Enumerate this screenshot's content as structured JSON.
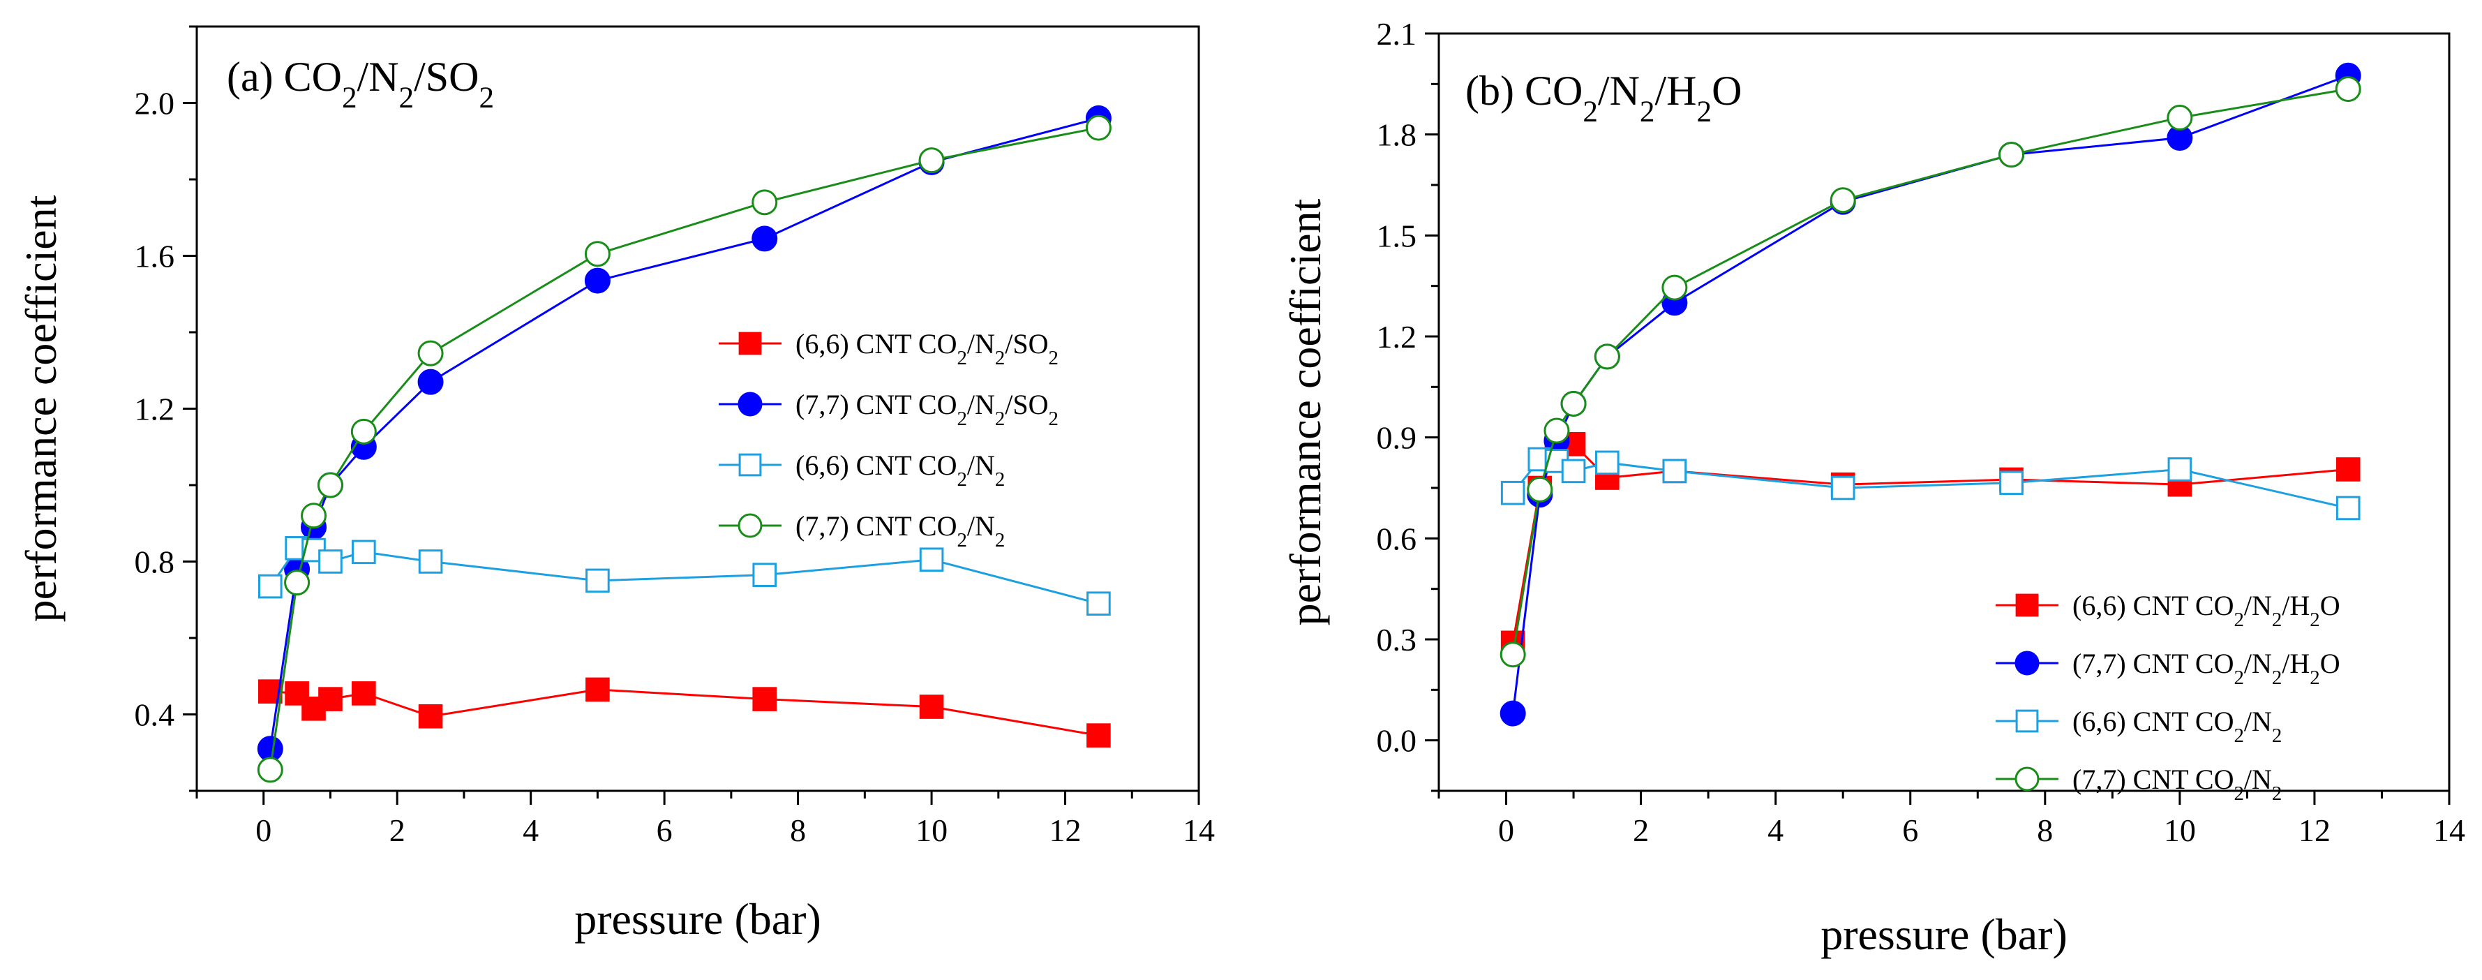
{
  "chart_data": [
    {
      "type": "line",
      "panel_title": {
        "prefix": "(a) CO",
        "s1": "2",
        "m1": "/N",
        "s2": "2",
        "m2": "/SO",
        "s3": "2"
      },
      "xlabel": "pressure (bar)",
      "ylabel": "performance coefficient",
      "xlim": [
        -1,
        14
      ],
      "ylim": [
        0.2,
        2.2
      ],
      "xticks": [
        0,
        2,
        4,
        6,
        8,
        10,
        12,
        14
      ],
      "yticks": [
        0.4,
        0.8,
        1.2,
        1.6,
        2.0
      ],
      "ytick_labels": [
        "0.4",
        "0.8",
        "1.2",
        "1.6",
        "2.0"
      ],
      "legend_position": "right-middle",
      "series": [
        {
          "name": "(6,6) CNT CO2/N2/SO2",
          "label": {
            "pre": "(6,6) CNT CO",
            "s1": "2",
            "m1": "/N",
            "s2": "2",
            "m2": "/SO",
            "s3": "2"
          },
          "color": "#ff0000",
          "marker": "square",
          "filled": true,
          "x": [
            0.1,
            0.5,
            0.75,
            1.0,
            1.5,
            2.5,
            5.0,
            7.5,
            10.0,
            12.5
          ],
          "y": [
            0.46,
            0.455,
            0.415,
            0.44,
            0.455,
            0.395,
            0.465,
            0.44,
            0.42,
            0.345
          ]
        },
        {
          "name": "(7,7) CNT CO2/N2/SO2",
          "label": {
            "pre": "(7,7) CNT CO",
            "s1": "2",
            "m1": "/N",
            "s2": "2",
            "m2": "/SO",
            "s3": "2"
          },
          "color": "#0000ff",
          "marker": "circle",
          "filled": true,
          "x": [
            0.1,
            0.5,
            0.75,
            1.0,
            1.5,
            2.5,
            5.0,
            7.5,
            10.0,
            12.5
          ],
          "y": [
            0.31,
            0.78,
            0.89,
            1.0,
            1.1,
            1.27,
            1.535,
            1.645,
            1.845,
            1.96
          ]
        },
        {
          "name": "(6,6) CNT CO2/N2",
          "label": {
            "pre": "(6,6) CNT CO",
            "s1": "2",
            "m1": "/N",
            "s2": "2",
            "m2": "",
            "s3": ""
          },
          "color": "#1ea0e0",
          "marker": "square",
          "filled": false,
          "x": [
            0.1,
            0.5,
            0.75,
            1.0,
            1.5,
            2.5,
            5.0,
            7.5,
            10.0,
            12.5
          ],
          "y": [
            0.735,
            0.835,
            0.83,
            0.8,
            0.825,
            0.8,
            0.75,
            0.765,
            0.805,
            0.69
          ]
        },
        {
          "name": "(7,7) CNT CO2/N2",
          "label": {
            "pre": "(7,7) CNT CO",
            "s1": "2",
            "m1": "/N",
            "s2": "2",
            "m2": "",
            "s3": ""
          },
          "color": "#1a8c1a",
          "marker": "circle",
          "filled": false,
          "x": [
            0.1,
            0.5,
            0.75,
            1.0,
            1.5,
            2.5,
            5.0,
            7.5,
            10.0,
            12.5
          ],
          "y": [
            0.255,
            0.745,
            0.92,
            1.0,
            1.14,
            1.345,
            1.605,
            1.74,
            1.85,
            1.935
          ]
        }
      ]
    },
    {
      "type": "line",
      "panel_title": {
        "prefix": "(b) CO",
        "s1": "2",
        "m1": "/N",
        "s2": "2",
        "m2": "/H",
        "s3": "2",
        "tail": "O"
      },
      "xlabel": "pressure (bar)",
      "ylabel": "performance coefficient",
      "xlim": [
        -1,
        14
      ],
      "ylim": [
        -0.15,
        2.1
      ],
      "xticks": [
        0,
        2,
        4,
        6,
        8,
        10,
        12,
        14
      ],
      "yticks": [
        0.0,
        0.3,
        0.6,
        0.9,
        1.2,
        1.5,
        1.8,
        2.1
      ],
      "ytick_labels": [
        "0.0",
        "0.3",
        "0.6",
        "0.9",
        "1.2",
        "1.5",
        "1.8",
        "2.1"
      ],
      "legend_position": "bottom-right",
      "series": [
        {
          "name": "(6,6) CNT CO2/N2/H2O",
          "label": {
            "pre": "(6,6) CNT CO",
            "s1": "2",
            "m1": "/N",
            "s2": "2",
            "m2": "/H",
            "s3": "2",
            "tail": "O"
          },
          "color": "#ff0000",
          "marker": "square",
          "filled": true,
          "x": [
            0.1,
            0.5,
            0.75,
            1.0,
            1.5,
            2.5,
            5.0,
            7.5,
            10.0,
            12.5
          ],
          "y": [
            0.29,
            0.75,
            0.87,
            0.88,
            0.78,
            0.8,
            0.76,
            0.775,
            0.76,
            0.805
          ]
        },
        {
          "name": "(7,7) CNT CO2/N2/H2O",
          "label": {
            "pre": "(7,7) CNT CO",
            "s1": "2",
            "m1": "/N",
            "s2": "2",
            "m2": "/H",
            "s3": "2",
            "tail": "O"
          },
          "color": "#0000ff",
          "marker": "circle",
          "filled": true,
          "x": [
            0.1,
            0.5,
            0.75,
            1.0,
            1.5,
            2.5,
            5.0,
            7.5,
            10.0,
            12.5
          ],
          "y": [
            0.08,
            0.73,
            0.89,
            1.0,
            1.14,
            1.3,
            1.6,
            1.74,
            1.79,
            1.975
          ]
        },
        {
          "name": "(6,6) CNT CO2/N2",
          "label": {
            "pre": "(6,6) CNT CO",
            "s1": "2",
            "m1": "/N",
            "s2": "2",
            "m2": "",
            "s3": "",
            "tail": ""
          },
          "color": "#1ea0e0",
          "marker": "square",
          "filled": false,
          "x": [
            0.1,
            0.5,
            0.75,
            1.0,
            1.5,
            2.5,
            5.0,
            7.5,
            10.0,
            12.5
          ],
          "y": [
            0.735,
            0.835,
            0.83,
            0.8,
            0.825,
            0.8,
            0.75,
            0.765,
            0.805,
            0.69
          ]
        },
        {
          "name": "(7,7) CNT CO2/N2",
          "label": {
            "pre": "(7,7) CNT CO",
            "s1": "2",
            "m1": "/N",
            "s2": "2",
            "m2": "",
            "s3": "",
            "tail": ""
          },
          "color": "#1a8c1a",
          "marker": "circle",
          "filled": false,
          "x": [
            0.1,
            0.5,
            0.75,
            1.0,
            1.5,
            2.5,
            5.0,
            7.5,
            10.0,
            12.5
          ],
          "y": [
            0.255,
            0.745,
            0.92,
            1.0,
            1.14,
            1.345,
            1.605,
            1.74,
            1.85,
            1.935
          ]
        }
      ]
    }
  ]
}
